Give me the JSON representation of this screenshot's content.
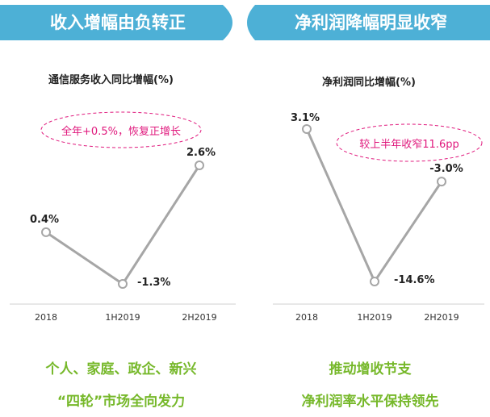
{
  "banners": {
    "left": "收入增幅由负转正",
    "right": "净利润降幅明显收窄"
  },
  "colors": {
    "banner": "#4db0d6",
    "line": "#a6a6a6",
    "note": "#e0197d",
    "footer": "#76b82a"
  },
  "annotations": {
    "left": "全年+0.5%，恢复正增长",
    "right": "较上半年收窄11.6pp"
  },
  "footers": {
    "left_line1": "个人、家庭、政企、新兴",
    "left_line2": "“四轮”市场全向发力",
    "right_line1": "推动增收节支",
    "right_line2": "净利润率水平保持领先"
  },
  "chart_data": [
    {
      "type": "line",
      "title": "通信服务收入同比增幅(%)",
      "categories": [
        "2018",
        "1H2019",
        "2H2019"
      ],
      "values": [
        0.4,
        -1.3,
        2.6
      ],
      "data_labels": [
        "0.4%",
        "-1.3%",
        "2.6%"
      ],
      "grid": false
    },
    {
      "type": "line",
      "title": "净利润同比增幅(%)",
      "categories": [
        "2018",
        "1H2019",
        "2H2019"
      ],
      "values": [
        3.1,
        -14.6,
        -3.0
      ],
      "data_labels": [
        "3.1%",
        "-14.6%",
        "-3.0%"
      ],
      "grid": false
    }
  ]
}
